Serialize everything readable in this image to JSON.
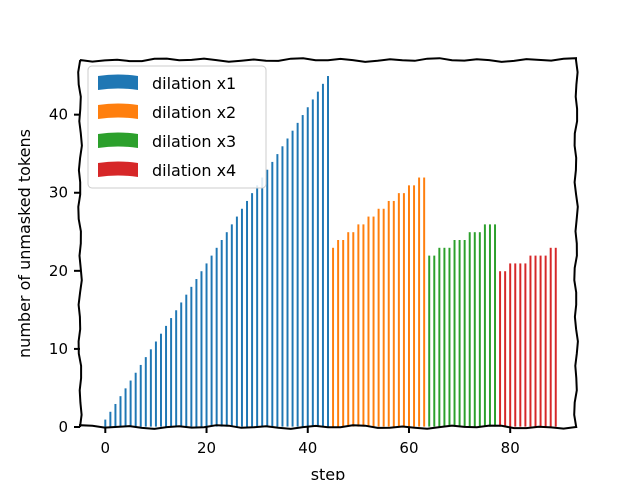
{
  "chart_data": {
    "type": "bar",
    "xlabel": "step",
    "ylabel": "number of unmasked tokens",
    "xlim": [
      -5,
      93
    ],
    "ylim": [
      0,
      47
    ],
    "xticks": [
      0,
      20,
      40,
      60,
      80
    ],
    "yticks": [
      0,
      10,
      20,
      30,
      40
    ],
    "grid": false,
    "legend_position": "top-left",
    "series": [
      {
        "name": "dilation x1",
        "color": "#1f77b4",
        "dilation": 1,
        "steps": 45,
        "max": 45
      },
      {
        "name": "dilation x2",
        "color": "#ff7f0e",
        "dilation": 2,
        "steps": 64,
        "max": 32
      },
      {
        "name": "dilation x3",
        "color": "#2ca02c",
        "dilation": 3,
        "steps": 78,
        "max": 26
      },
      {
        "name": "dilation x4",
        "color": "#d62728",
        "dilation": 4,
        "steps": 90,
        "max": 23
      }
    ]
  }
}
